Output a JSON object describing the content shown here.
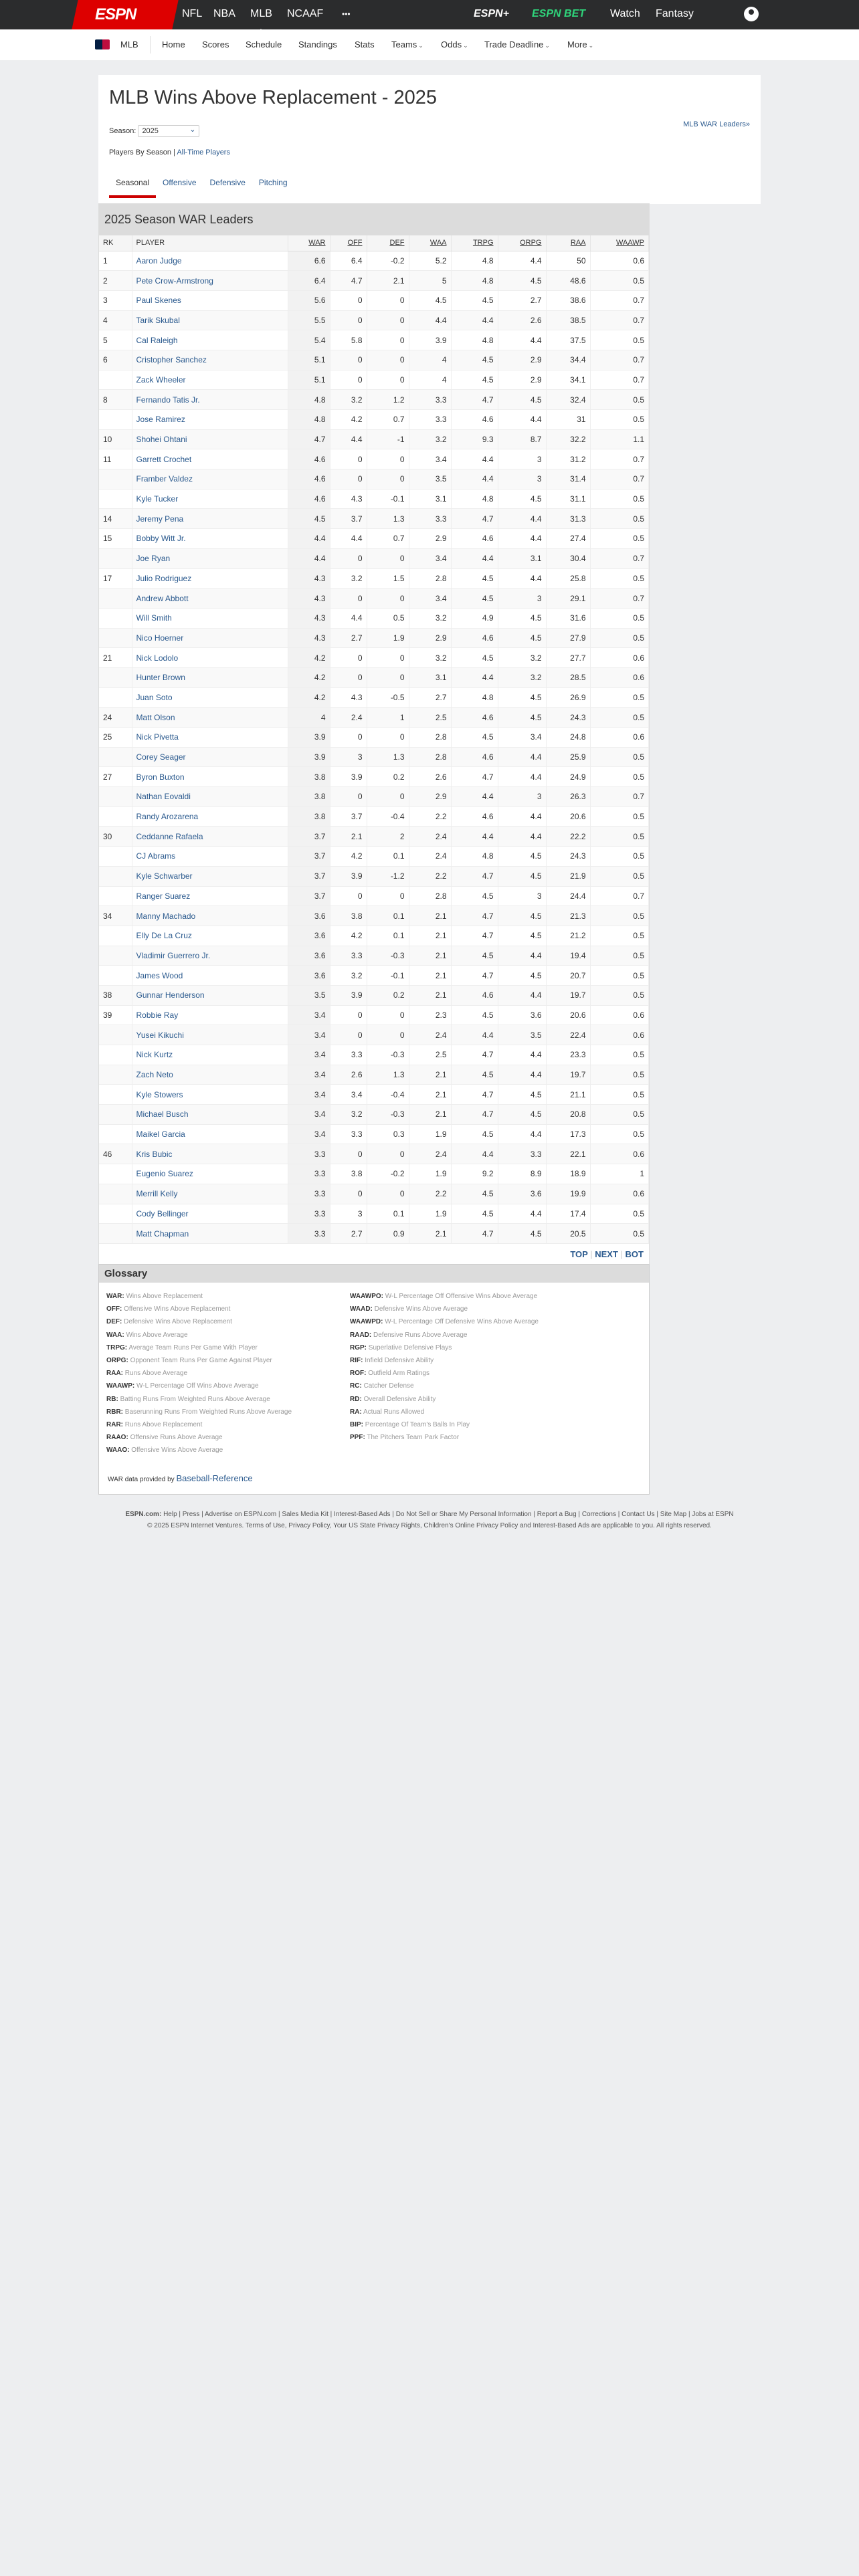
{
  "topnav": {
    "logo": "ESPN",
    "items": [
      "NFL",
      "NBA",
      "MLB",
      "NCAAF",
      "•••"
    ],
    "active": "MLB",
    "right": [
      "ESPN+",
      "ESPN BET",
      "Watch",
      "Fantasy"
    ]
  },
  "subnav": {
    "league": "MLB",
    "items": [
      "Home",
      "Scores",
      "Schedule",
      "Standings",
      "Stats",
      "Teams",
      "Odds",
      "Trade Deadline",
      "More"
    ],
    "dropdown_items": [
      "Teams",
      "Odds",
      "Trade Deadline",
      "More"
    ]
  },
  "page": {
    "title": "MLB Wins Above Replacement - 2025",
    "season_label": "Season:",
    "season_value": "2025",
    "war_leaders_link": "MLB WAR Leaders»",
    "players_by_season": "Players By Season",
    "separator": "|",
    "all_time": "All-Time Players",
    "tabs": [
      "Seasonal",
      "Offensive",
      "Defensive",
      "Pitching"
    ],
    "active_tab": "Seasonal"
  },
  "table": {
    "title": "2025 Season WAR Leaders",
    "columns": [
      "RK",
      "PLAYER",
      "WAR",
      "OFF",
      "DEF",
      "WAA",
      "TRPG",
      "ORPG",
      "RAA",
      "WAAWP"
    ],
    "rows": [
      [
        "1",
        "Aaron Judge",
        "6.6",
        "6.4",
        "-0.2",
        "5.2",
        "4.8",
        "4.4",
        "50",
        "0.6"
      ],
      [
        "2",
        "Pete Crow-Armstrong",
        "6.4",
        "4.7",
        "2.1",
        "5",
        "4.8",
        "4.5",
        "48.6",
        "0.5"
      ],
      [
        "3",
        "Paul Skenes",
        "5.6",
        "0",
        "0",
        "4.5",
        "4.5",
        "2.7",
        "38.6",
        "0.7"
      ],
      [
        "4",
        "Tarik Skubal",
        "5.5",
        "0",
        "0",
        "4.4",
        "4.4",
        "2.6",
        "38.5",
        "0.7"
      ],
      [
        "5",
        "Cal Raleigh",
        "5.4",
        "5.8",
        "0",
        "3.9",
        "4.8",
        "4.4",
        "37.5",
        "0.5"
      ],
      [
        "6",
        "Cristopher Sanchez",
        "5.1",
        "0",
        "0",
        "4",
        "4.5",
        "2.9",
        "34.4",
        "0.7"
      ],
      [
        "",
        "Zack Wheeler",
        "5.1",
        "0",
        "0",
        "4",
        "4.5",
        "2.9",
        "34.1",
        "0.7"
      ],
      [
        "8",
        "Fernando Tatis Jr.",
        "4.8",
        "3.2",
        "1.2",
        "3.3",
        "4.7",
        "4.5",
        "32.4",
        "0.5"
      ],
      [
        "",
        "Jose Ramirez",
        "4.8",
        "4.2",
        "0.7",
        "3.3",
        "4.6",
        "4.4",
        "31",
        "0.5"
      ],
      [
        "10",
        "Shohei Ohtani",
        "4.7",
        "4.4",
        "-1",
        "3.2",
        "9.3",
        "8.7",
        "32.2",
        "1.1"
      ],
      [
        "11",
        "Garrett Crochet",
        "4.6",
        "0",
        "0",
        "3.4",
        "4.4",
        "3",
        "31.2",
        "0.7"
      ],
      [
        "",
        "Framber Valdez",
        "4.6",
        "0",
        "0",
        "3.5",
        "4.4",
        "3",
        "31.4",
        "0.7"
      ],
      [
        "",
        "Kyle Tucker",
        "4.6",
        "4.3",
        "-0.1",
        "3.1",
        "4.8",
        "4.5",
        "31.1",
        "0.5"
      ],
      [
        "14",
        "Jeremy Pena",
        "4.5",
        "3.7",
        "1.3",
        "3.3",
        "4.7",
        "4.4",
        "31.3",
        "0.5"
      ],
      [
        "15",
        "Bobby Witt Jr.",
        "4.4",
        "4.4",
        "0.7",
        "2.9",
        "4.6",
        "4.4",
        "27.4",
        "0.5"
      ],
      [
        "",
        "Joe Ryan",
        "4.4",
        "0",
        "0",
        "3.4",
        "4.4",
        "3.1",
        "30.4",
        "0.7"
      ],
      [
        "17",
        "Julio Rodriguez",
        "4.3",
        "3.2",
        "1.5",
        "2.8",
        "4.5",
        "4.4",
        "25.8",
        "0.5"
      ],
      [
        "",
        "Andrew Abbott",
        "4.3",
        "0",
        "0",
        "3.4",
        "4.5",
        "3",
        "29.1",
        "0.7"
      ],
      [
        "",
        "Will Smith",
        "4.3",
        "4.4",
        "0.5",
        "3.2",
        "4.9",
        "4.5",
        "31.6",
        "0.5"
      ],
      [
        "",
        "Nico Hoerner",
        "4.3",
        "2.7",
        "1.9",
        "2.9",
        "4.6",
        "4.5",
        "27.9",
        "0.5"
      ],
      [
        "21",
        "Nick Lodolo",
        "4.2",
        "0",
        "0",
        "3.2",
        "4.5",
        "3.2",
        "27.7",
        "0.6"
      ],
      [
        "",
        "Hunter Brown",
        "4.2",
        "0",
        "0",
        "3.1",
        "4.4",
        "3.2",
        "28.5",
        "0.6"
      ],
      [
        "",
        "Juan Soto",
        "4.2",
        "4.3",
        "-0.5",
        "2.7",
        "4.8",
        "4.5",
        "26.9",
        "0.5"
      ],
      [
        "24",
        "Matt Olson",
        "4",
        "2.4",
        "1",
        "2.5",
        "4.6",
        "4.5",
        "24.3",
        "0.5"
      ],
      [
        "25",
        "Nick Pivetta",
        "3.9",
        "0",
        "0",
        "2.8",
        "4.5",
        "3.4",
        "24.8",
        "0.6"
      ],
      [
        "",
        "Corey Seager",
        "3.9",
        "3",
        "1.3",
        "2.8",
        "4.6",
        "4.4",
        "25.9",
        "0.5"
      ],
      [
        "27",
        "Byron Buxton",
        "3.8",
        "3.9",
        "0.2",
        "2.6",
        "4.7",
        "4.4",
        "24.9",
        "0.5"
      ],
      [
        "",
        "Nathan Eovaldi",
        "3.8",
        "0",
        "0",
        "2.9",
        "4.4",
        "3",
        "26.3",
        "0.7"
      ],
      [
        "",
        "Randy Arozarena",
        "3.8",
        "3.7",
        "-0.4",
        "2.2",
        "4.6",
        "4.4",
        "20.6",
        "0.5"
      ],
      [
        "30",
        "Ceddanne Rafaela",
        "3.7",
        "2.1",
        "2",
        "2.4",
        "4.4",
        "4.4",
        "22.2",
        "0.5"
      ],
      [
        "",
        "CJ Abrams",
        "3.7",
        "4.2",
        "0.1",
        "2.4",
        "4.8",
        "4.5",
        "24.3",
        "0.5"
      ],
      [
        "",
        "Kyle Schwarber",
        "3.7",
        "3.9",
        "-1.2",
        "2.2",
        "4.7",
        "4.5",
        "21.9",
        "0.5"
      ],
      [
        "",
        "Ranger Suarez",
        "3.7",
        "0",
        "0",
        "2.8",
        "4.5",
        "3",
        "24.4",
        "0.7"
      ],
      [
        "34",
        "Manny Machado",
        "3.6",
        "3.8",
        "0.1",
        "2.1",
        "4.7",
        "4.5",
        "21.3",
        "0.5"
      ],
      [
        "",
        "Elly De La Cruz",
        "3.6",
        "4.2",
        "0.1",
        "2.1",
        "4.7",
        "4.5",
        "21.2",
        "0.5"
      ],
      [
        "",
        "Vladimir Guerrero Jr.",
        "3.6",
        "3.3",
        "-0.3",
        "2.1",
        "4.5",
        "4.4",
        "19.4",
        "0.5"
      ],
      [
        "",
        "James Wood",
        "3.6",
        "3.2",
        "-0.1",
        "2.1",
        "4.7",
        "4.5",
        "20.7",
        "0.5"
      ],
      [
        "38",
        "Gunnar Henderson",
        "3.5",
        "3.9",
        "0.2",
        "2.1",
        "4.6",
        "4.4",
        "19.7",
        "0.5"
      ],
      [
        "39",
        "Robbie Ray",
        "3.4",
        "0",
        "0",
        "2.3",
        "4.5",
        "3.6",
        "20.6",
        "0.6"
      ],
      [
        "",
        "Yusei Kikuchi",
        "3.4",
        "0",
        "0",
        "2.4",
        "4.4",
        "3.5",
        "22.4",
        "0.6"
      ],
      [
        "",
        "Nick Kurtz",
        "3.4",
        "3.3",
        "-0.3",
        "2.5",
        "4.7",
        "4.4",
        "23.3",
        "0.5"
      ],
      [
        "",
        "Zach Neto",
        "3.4",
        "2.6",
        "1.3",
        "2.1",
        "4.5",
        "4.4",
        "19.7",
        "0.5"
      ],
      [
        "",
        "Kyle Stowers",
        "3.4",
        "3.4",
        "-0.4",
        "2.1",
        "4.7",
        "4.5",
        "21.1",
        "0.5"
      ],
      [
        "",
        "Michael Busch",
        "3.4",
        "3.2",
        "-0.3",
        "2.1",
        "4.7",
        "4.5",
        "20.8",
        "0.5"
      ],
      [
        "",
        "Maikel Garcia",
        "3.4",
        "3.3",
        "0.3",
        "1.9",
        "4.5",
        "4.4",
        "17.3",
        "0.5"
      ],
      [
        "46",
        "Kris Bubic",
        "3.3",
        "0",
        "0",
        "2.4",
        "4.4",
        "3.3",
        "22.1",
        "0.6"
      ],
      [
        "",
        "Eugenio Suarez",
        "3.3",
        "3.8",
        "-0.2",
        "1.9",
        "9.2",
        "8.9",
        "18.9",
        "1"
      ],
      [
        "",
        "Merrill Kelly",
        "3.3",
        "0",
        "0",
        "2.2",
        "4.5",
        "3.6",
        "19.9",
        "0.6"
      ],
      [
        "",
        "Cody Bellinger",
        "3.3",
        "3",
        "0.1",
        "1.9",
        "4.5",
        "4.4",
        "17.4",
        "0.5"
      ],
      [
        "",
        "Matt Chapman",
        "3.3",
        "2.7",
        "0.9",
        "2.1",
        "4.7",
        "4.5",
        "20.5",
        "0.5"
      ]
    ],
    "pager": [
      "TOP",
      "NEXT",
      "BOT"
    ]
  },
  "glossary": {
    "title": "Glossary",
    "left": [
      [
        "WAR:",
        "Wins Above Replacement"
      ],
      [
        "OFF:",
        "Offensive Wins Above Replacement"
      ],
      [
        "DEF:",
        "Defensive Wins Above Replacement"
      ],
      [
        "WAA:",
        "Wins Above Average"
      ],
      [
        "TRPG:",
        "Average Team Runs Per Game With Player"
      ],
      [
        "ORPG:",
        "Opponent Team Runs Per Game Against Player"
      ],
      [
        "RAA:",
        "Runs Above Average"
      ],
      [
        "WAAWP:",
        "W-L Percentage Off Wins Above Average"
      ],
      [
        "RB:",
        "Batting Runs From Weighted Runs Above Average"
      ],
      [
        "RBR:",
        "Baserunning Runs From Weighted Runs Above Average"
      ],
      [
        "RAR:",
        "Runs Above Replacement"
      ],
      [
        "RAAO:",
        "Offensive Runs Above Average"
      ],
      [
        "WAAO:",
        "Offensive Wins Above Average"
      ]
    ],
    "right": [
      [
        "WAAWPO:",
        "W-L Percentage Off Offensive Wins Above Average"
      ],
      [
        "WAAD:",
        "Defensive Wins Above Average"
      ],
      [
        "WAAWPD:",
        "W-L Percentage Off Defensive Wins Above Average"
      ],
      [
        "RAAD:",
        "Defensive Runs Above Average"
      ],
      [
        "RGP:",
        "Superlative Defensive Plays"
      ],
      [
        "RIF:",
        "Infield Defensive Ability"
      ],
      [
        "ROF:",
        "Outfield Arm Ratings"
      ],
      [
        "RC:",
        "Catcher Defense"
      ],
      [
        "RD:",
        "Overall Defensive Ability"
      ],
      [
        "RA:",
        "Actual Runs Allowed"
      ],
      [
        "BIP:",
        "Percentage Of Team's Balls In Play"
      ],
      [
        "PPF:",
        "The Pitchers Team Park Factor"
      ]
    ],
    "credit_prefix": "WAR data provided by",
    "credit_link": "Baseball-Reference"
  },
  "footer": {
    "label": "ESPN.com:",
    "links": [
      "Help",
      "Press",
      "Advertise on ESPN.com",
      "Sales Media Kit",
      "Interest-Based Ads",
      "Do Not Sell or Share My Personal Information",
      "Report a Bug",
      "Corrections",
      "Contact Us",
      "Site Map",
      "Jobs at ESPN"
    ],
    "copyright": "© 2025 ESPN Internet Ventures. Terms of Use, Privacy Policy, Your US State Privacy Rights, Children's Online Privacy Policy and Interest-Based Ads are applicable to you. All rights reserved."
  },
  "colors": {
    "brand_red": "#d00000",
    "link": "#2b5a8e",
    "topbar": "#2b2c2d",
    "espnbet_green": "#2fd47b"
  }
}
